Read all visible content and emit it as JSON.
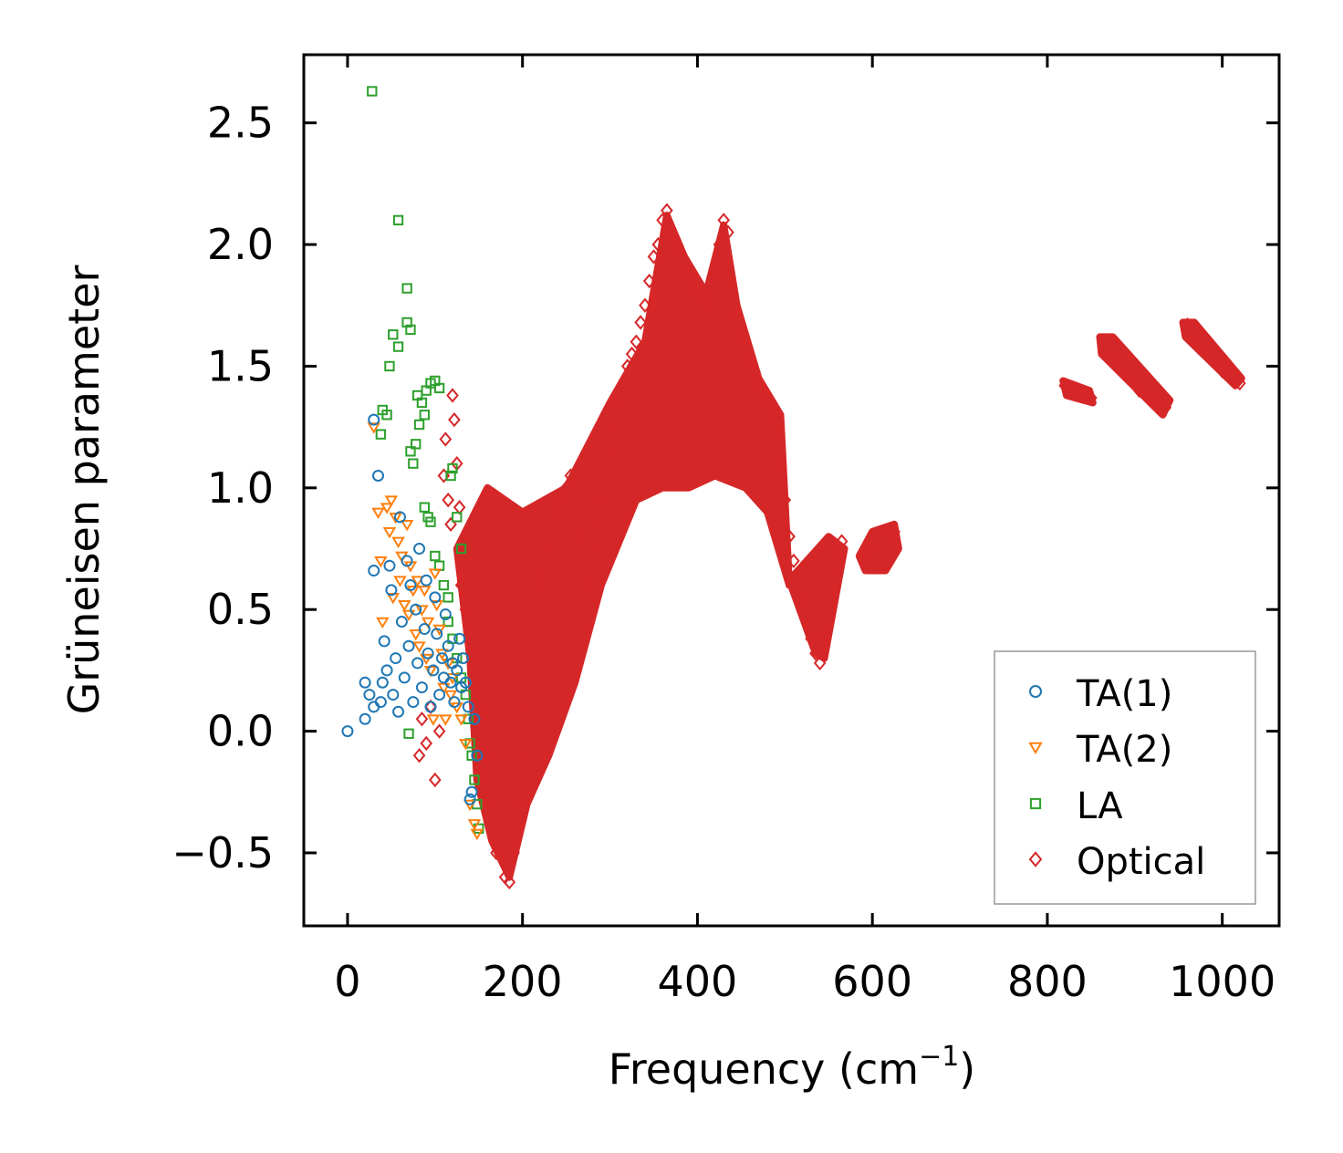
{
  "chart_data": {
    "type": "scatter",
    "title": "",
    "xlabel": "Frequency (cm",
    "xlabel_sup": "−1",
    "xlabel_end": ")",
    "ylabel": "Grüneisen parameter",
    "xlim": [
      -50,
      1065
    ],
    "ylim": [
      -0.8,
      2.78
    ],
    "xticks": [
      0,
      200,
      400,
      600,
      800,
      1000
    ],
    "xtick_labels": [
      "0",
      "200",
      "400",
      "600",
      "800",
      "1000"
    ],
    "yticks": [
      -0.5,
      0.0,
      0.5,
      1.0,
      1.5,
      2.0,
      2.5
    ],
    "ytick_labels": [
      "−0.5",
      "0.0",
      "0.5",
      "1.0",
      "1.5",
      "2.0",
      "2.5"
    ],
    "grid": false,
    "legend_position": "lower-right",
    "series": [
      {
        "name": "TA(1)",
        "marker": "circle",
        "color": "#1f77b4",
        "points": [
          [
            0,
            0.0
          ],
          [
            20,
            0.05
          ],
          [
            20,
            0.2
          ],
          [
            25,
            0.15
          ],
          [
            30,
            0.1
          ],
          [
            30,
            0.66
          ],
          [
            30,
            1.28
          ],
          [
            35,
            1.05
          ],
          [
            38,
            0.12
          ],
          [
            40,
            0.2
          ],
          [
            42,
            0.37
          ],
          [
            45,
            0.25
          ],
          [
            48,
            0.68
          ],
          [
            50,
            0.58
          ],
          [
            52,
            0.15
          ],
          [
            55,
            0.3
          ],
          [
            58,
            0.08
          ],
          [
            60,
            0.88
          ],
          [
            62,
            0.45
          ],
          [
            65,
            0.22
          ],
          [
            68,
            0.7
          ],
          [
            70,
            0.35
          ],
          [
            72,
            0.6
          ],
          [
            75,
            0.12
          ],
          [
            78,
            0.5
          ],
          [
            80,
            0.28
          ],
          [
            82,
            0.75
          ],
          [
            85,
            0.18
          ],
          [
            88,
            0.42
          ],
          [
            90,
            0.62
          ],
          [
            92,
            0.32
          ],
          [
            95,
            0.1
          ],
          [
            98,
            0.25
          ],
          [
            100,
            0.55
          ],
          [
            102,
            0.4
          ],
          [
            105,
            0.15
          ],
          [
            108,
            0.3
          ],
          [
            110,
            0.22
          ],
          [
            112,
            0.48
          ],
          [
            115,
            0.35
          ],
          [
            118,
            0.2
          ],
          [
            120,
            0.28
          ],
          [
            122,
            0.12
          ],
          [
            125,
            0.25
          ],
          [
            128,
            0.38
          ],
          [
            130,
            0.18
          ],
          [
            132,
            0.3
          ],
          [
            135,
            0.2
          ],
          [
            138,
            0.1
          ],
          [
            140,
            -0.28
          ],
          [
            142,
            -0.25
          ],
          [
            145,
            0.05
          ],
          [
            148,
            -0.1
          ]
        ]
      },
      {
        "name": "TA(2)",
        "marker": "triangle-down",
        "color": "#ff7f0e",
        "points": [
          [
            30,
            1.25
          ],
          [
            35,
            0.9
          ],
          [
            38,
            0.7
          ],
          [
            40,
            0.45
          ],
          [
            45,
            0.92
          ],
          [
            48,
            0.82
          ],
          [
            50,
            0.95
          ],
          [
            52,
            0.55
          ],
          [
            55,
            0.88
          ],
          [
            58,
            0.78
          ],
          [
            60,
            0.62
          ],
          [
            62,
            0.72
          ],
          [
            65,
            0.52
          ],
          [
            68,
            0.85
          ],
          [
            70,
            0.48
          ],
          [
            72,
            0.68
          ],
          [
            75,
            0.58
          ],
          [
            78,
            0.4
          ],
          [
            80,
            0.62
          ],
          [
            82,
            0.35
          ],
          [
            85,
            0.5
          ],
          [
            88,
            0.58
          ],
          [
            90,
            0.3
          ],
          [
            92,
            0.45
          ],
          [
            95,
            0.25
          ],
          [
            98,
            0.05
          ],
          [
            100,
            0.65
          ],
          [
            102,
            0.52
          ],
          [
            105,
            0.42
          ],
          [
            108,
            0.32
          ],
          [
            110,
            0.18
          ],
          [
            112,
            0.05
          ],
          [
            115,
            0.28
          ],
          [
            118,
            0.15
          ],
          [
            120,
            0.22
          ],
          [
            125,
            0.1
          ],
          [
            130,
            0.05
          ],
          [
            135,
            -0.05
          ],
          [
            140,
            -0.3
          ],
          [
            145,
            -0.38
          ],
          [
            148,
            -0.42
          ]
        ]
      },
      {
        "name": "LA",
        "marker": "square",
        "color": "#2ca02c",
        "points": [
          [
            28,
            2.63
          ],
          [
            58,
            2.1
          ],
          [
            68,
            1.82
          ],
          [
            68,
            1.68
          ],
          [
            52,
            1.63
          ],
          [
            58,
            1.58
          ],
          [
            72,
            1.65
          ],
          [
            48,
            1.5
          ],
          [
            40,
            1.32
          ],
          [
            45,
            1.3
          ],
          [
            38,
            1.22
          ],
          [
            80,
            1.38
          ],
          [
            85,
            1.35
          ],
          [
            90,
            1.4
          ],
          [
            95,
            1.43
          ],
          [
            100,
            1.44
          ],
          [
            105,
            1.41
          ],
          [
            82,
            1.26
          ],
          [
            88,
            1.3
          ],
          [
            72,
            1.15
          ],
          [
            78,
            1.18
          ],
          [
            75,
            1.1
          ],
          [
            88,
            0.92
          ],
          [
            92,
            0.88
          ],
          [
            95,
            0.86
          ],
          [
            100,
            0.72
          ],
          [
            105,
            0.68
          ],
          [
            110,
            0.6
          ],
          [
            115,
            0.55
          ],
          [
            118,
            1.05
          ],
          [
            120,
            1.08
          ],
          [
            125,
            0.88
          ],
          [
            130,
            0.75
          ],
          [
            115,
            0.45
          ],
          [
            120,
            0.38
          ],
          [
            125,
            0.3
          ],
          [
            130,
            0.22
          ],
          [
            135,
            0.15
          ],
          [
            138,
            0.05
          ],
          [
            140,
            -0.05
          ],
          [
            142,
            -0.1
          ],
          [
            145,
            -0.2
          ],
          [
            148,
            -0.3
          ],
          [
            150,
            -0.4
          ],
          [
            70,
            -0.01
          ]
        ]
      },
      {
        "name": "Optical",
        "marker": "diamond",
        "color": "#d62728",
        "points": [
          [
            82,
            -0.1
          ],
          [
            85,
            0.05
          ],
          [
            90,
            -0.05
          ],
          [
            95,
            0.1
          ],
          [
            100,
            -0.2
          ],
          [
            105,
            0.0
          ],
          [
            110,
            1.05
          ],
          [
            112,
            1.2
          ],
          [
            115,
            0.95
          ],
          [
            118,
            0.85
          ],
          [
            120,
            1.38
          ],
          [
            122,
            1.28
          ],
          [
            125,
            1.1
          ],
          [
            128,
            0.92
          ],
          [
            130,
            0.6
          ],
          [
            135,
            0.5
          ],
          [
            140,
            0.4
          ],
          [
            145,
            0.3
          ],
          [
            150,
            0.2
          ],
          [
            155,
            0.1
          ],
          [
            160,
            -0.1
          ],
          [
            165,
            -0.3
          ],
          [
            170,
            -0.5
          ],
          [
            175,
            -0.45
          ],
          [
            180,
            -0.6
          ],
          [
            185,
            -0.62
          ],
          [
            190,
            -0.5
          ],
          [
            195,
            -0.3
          ],
          [
            200,
            -0.1
          ],
          [
            205,
            0.1
          ],
          [
            210,
            0.3
          ],
          [
            215,
            0.5
          ],
          [
            220,
            0.6
          ],
          [
            225,
            0.65
          ],
          [
            230,
            0.75
          ],
          [
            235,
            0.85
          ],
          [
            240,
            0.9
          ],
          [
            245,
            0.95
          ],
          [
            250,
            1.0
          ],
          [
            255,
            1.05
          ],
          [
            260,
            0.9
          ],
          [
            265,
            0.8
          ],
          [
            270,
            0.7
          ],
          [
            275,
            0.6
          ],
          [
            280,
            0.75
          ],
          [
            285,
            0.85
          ],
          [
            290,
            0.95
          ],
          [
            295,
            1.05
          ],
          [
            300,
            1.15
          ],
          [
            305,
            1.25
          ],
          [
            310,
            1.35
          ],
          [
            315,
            1.42
          ],
          [
            320,
            1.5
          ],
          [
            325,
            1.55
          ],
          [
            330,
            1.6
          ],
          [
            335,
            1.68
          ],
          [
            340,
            1.75
          ],
          [
            345,
            1.85
          ],
          [
            350,
            1.95
          ],
          [
            355,
            2.0
          ],
          [
            360,
            2.1
          ],
          [
            365,
            2.14
          ],
          [
            370,
            2.05
          ],
          [
            375,
            1.98
          ],
          [
            380,
            1.92
          ],
          [
            385,
            1.88
          ],
          [
            390,
            1.85
          ],
          [
            395,
            1.82
          ],
          [
            400,
            1.8
          ],
          [
            405,
            1.8
          ],
          [
            410,
            1.78
          ],
          [
            415,
            1.75
          ],
          [
            420,
            1.88
          ],
          [
            425,
            2.0
          ],
          [
            430,
            2.1
          ],
          [
            435,
            2.05
          ],
          [
            440,
            1.8
          ],
          [
            445,
            1.7
          ],
          [
            450,
            1.62
          ],
          [
            455,
            1.55
          ],
          [
            460,
            1.52
          ],
          [
            465,
            1.48
          ],
          [
            470,
            1.42
          ],
          [
            475,
            1.38
          ],
          [
            480,
            1.35
          ],
          [
            485,
            1.3
          ],
          [
            490,
            1.25
          ],
          [
            495,
            1.1
          ],
          [
            500,
            0.95
          ],
          [
            505,
            0.8
          ],
          [
            510,
            0.7
          ],
          [
            520,
            0.55
          ],
          [
            525,
            0.45
          ],
          [
            530,
            0.38
          ],
          [
            535,
            0.32
          ],
          [
            540,
            0.28
          ],
          [
            545,
            0.4
          ],
          [
            550,
            0.55
          ],
          [
            555,
            0.65
          ],
          [
            560,
            0.72
          ],
          [
            565,
            0.78
          ],
          [
            590,
            0.72
          ],
          [
            600,
            0.75
          ],
          [
            610,
            0.78
          ],
          [
            620,
            0.8
          ],
          [
            625,
            0.82
          ],
          [
            820,
            1.42
          ],
          [
            830,
            1.4
          ],
          [
            840,
            1.38
          ],
          [
            850,
            1.37
          ],
          [
            865,
            1.6
          ],
          [
            875,
            1.55
          ],
          [
            885,
            1.5
          ],
          [
            895,
            1.45
          ],
          [
            905,
            1.4
          ],
          [
            915,
            1.37
          ],
          [
            925,
            1.35
          ],
          [
            935,
            1.33
          ],
          [
            960,
            1.67
          ],
          [
            970,
            1.62
          ],
          [
            980,
            1.57
          ],
          [
            990,
            1.52
          ],
          [
            1000,
            1.48
          ],
          [
            1010,
            1.45
          ],
          [
            1020,
            1.43
          ]
        ]
      }
    ]
  }
}
